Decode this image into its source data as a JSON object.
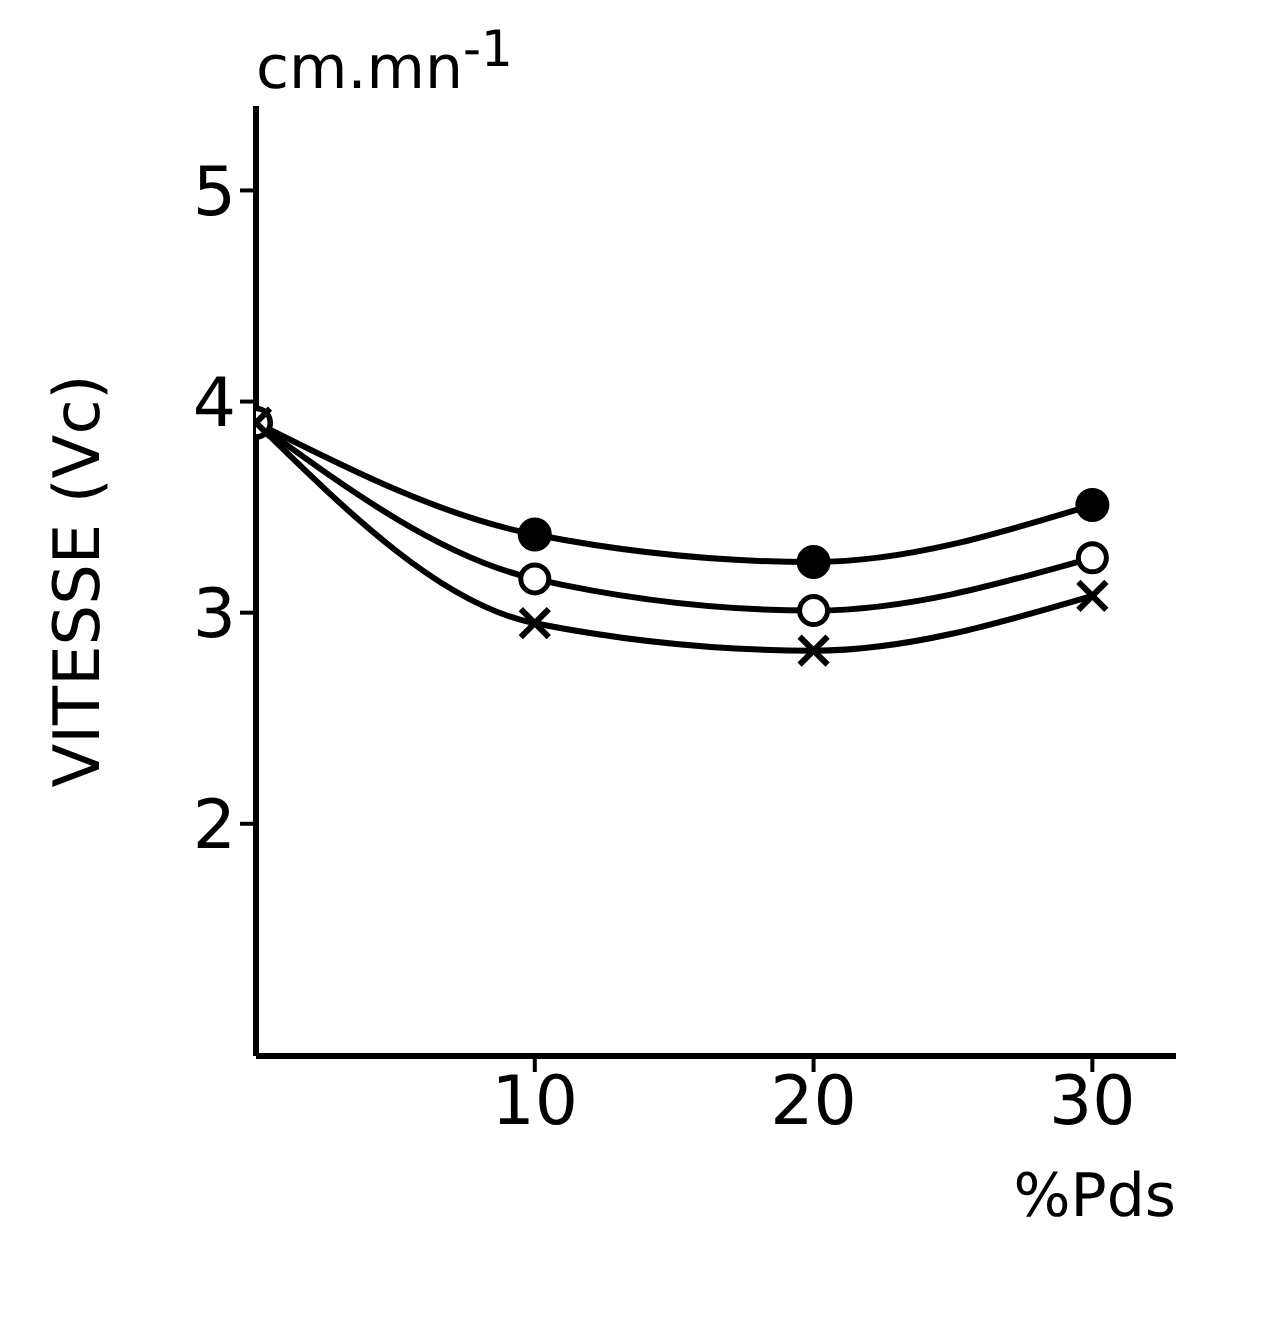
{
  "chart_data": {
    "type": "line",
    "xlabel": "%Pds",
    "ylabel": "VITESSE (Vc)",
    "annotations": [
      "cm.mn$^{-1}$"
    ],
    "x": [
      0,
      10,
      20,
      30
    ],
    "xlim": [
      0,
      33
    ],
    "xticks": [
      10,
      20,
      30
    ],
    "ylim": [
      0.9,
      5.4
    ],
    "yticks": [
      2,
      3,
      4,
      5
    ],
    "grid": false,
    "legend": false,
    "series": [
      {
        "color": "#000000",
        "marker": "circle",
        "values": [
          3.9,
          3.37,
          3.24,
          3.51
        ]
      },
      {
        "color": "#000000",
        "marker": "open-circle",
        "values": [
          3.9,
          3.16,
          3.01,
          3.26
        ]
      },
      {
        "color": "#000000",
        "marker": "cross",
        "values": [
          3.9,
          2.95,
          2.82,
          3.08
        ]
      }
    ]
  }
}
